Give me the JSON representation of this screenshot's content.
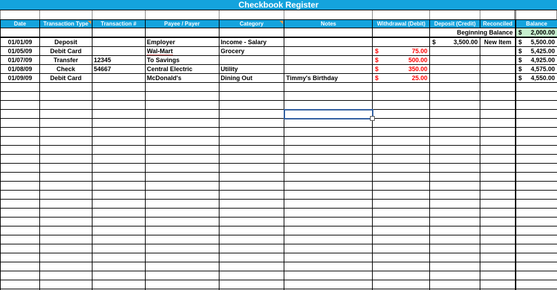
{
  "title": "Checkbook Register",
  "currency_symbol": "$",
  "columns": [
    {
      "label": "Date",
      "note_marker": false
    },
    {
      "label": "Transaction Type",
      "note_marker": true
    },
    {
      "label": "Transaction #",
      "note_marker": false
    },
    {
      "label": "Payee / Payer",
      "note_marker": false
    },
    {
      "label": "Category",
      "note_marker": true
    },
    {
      "label": "Notes",
      "note_marker": false
    },
    {
      "label": "Withdrawal (Debit)",
      "note_marker": false
    },
    {
      "label": "Deposit (Credit)",
      "note_marker": false
    },
    {
      "label": "Reconciled",
      "note_marker": false
    },
    {
      "label": "Balance",
      "note_marker": false
    }
  ],
  "beginning_balance": {
    "label": "Beginning Balance",
    "amount": "2,000.00"
  },
  "rows": [
    {
      "date": "01/01/09",
      "type": "Deposit",
      "txn": "",
      "payee": "Employer",
      "category": "Income - Salary",
      "notes": "",
      "withdrawal": "",
      "deposit": "3,500.00",
      "reconciled": "New Item",
      "balance": "5,500.00",
      "payee_spellcheck": false
    },
    {
      "date": "01/05/09",
      "type": "Debit Card",
      "txn": "",
      "payee": "Wal-Mart",
      "category": "Grocery",
      "notes": "",
      "withdrawal": "75.00",
      "deposit": "",
      "reconciled": "",
      "balance": "5,425.00",
      "payee_spellcheck": true
    },
    {
      "date": "01/07/09",
      "type": "Transfer",
      "txn": "12345",
      "payee": "To Savings",
      "category": "",
      "notes": "",
      "withdrawal": "500.00",
      "deposit": "",
      "reconciled": "",
      "balance": "4,925.00",
      "payee_spellcheck": false
    },
    {
      "date": "01/08/09",
      "type": "Check",
      "txn": "54667",
      "payee": "Central Electric",
      "category": "Utility",
      "notes": "",
      "withdrawal": "350.00",
      "deposit": "",
      "reconciled": "",
      "balance": "4,575.00",
      "payee_spellcheck": false
    },
    {
      "date": "01/09/09",
      "type": "Debit Card",
      "txn": "",
      "payee": "McDonald's",
      "category": "Dining Out",
      "notes": "Timmy's Birthday",
      "withdrawal": "25.00",
      "deposit": "",
      "reconciled": "",
      "balance": "4,550.00",
      "payee_spellcheck": false
    }
  ],
  "empty_row_count": 24,
  "selection": {
    "row_index": 9,
    "column": "Notes"
  },
  "colors": {
    "header_bg": "#14A3DD",
    "title_bg": "#14A3DD",
    "balance_highlight_bg": "#C6EFCE",
    "withdrawal_text": "#FF0000",
    "selection_border": "#2E5C9E",
    "comment_marker": "#F0953D"
  }
}
